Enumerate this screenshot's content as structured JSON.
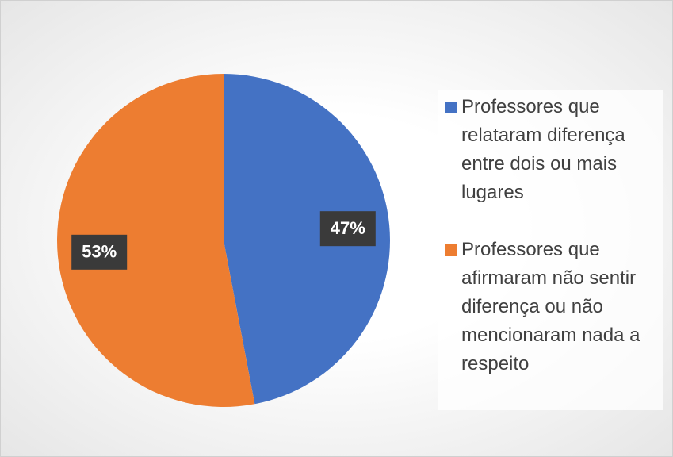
{
  "chart_data": {
    "type": "pie",
    "categories": [
      "Professores que relataram diferença entre dois ou mais lugares",
      "Professores que afirmaram não sentir diferença ou não mencionaram nada a respeito"
    ],
    "values": [
      47,
      53
    ],
    "value_labels": [
      "47%",
      "53%"
    ],
    "colors": [
      "#4472c4",
      "#ed7d31"
    ],
    "legend": "right"
  }
}
